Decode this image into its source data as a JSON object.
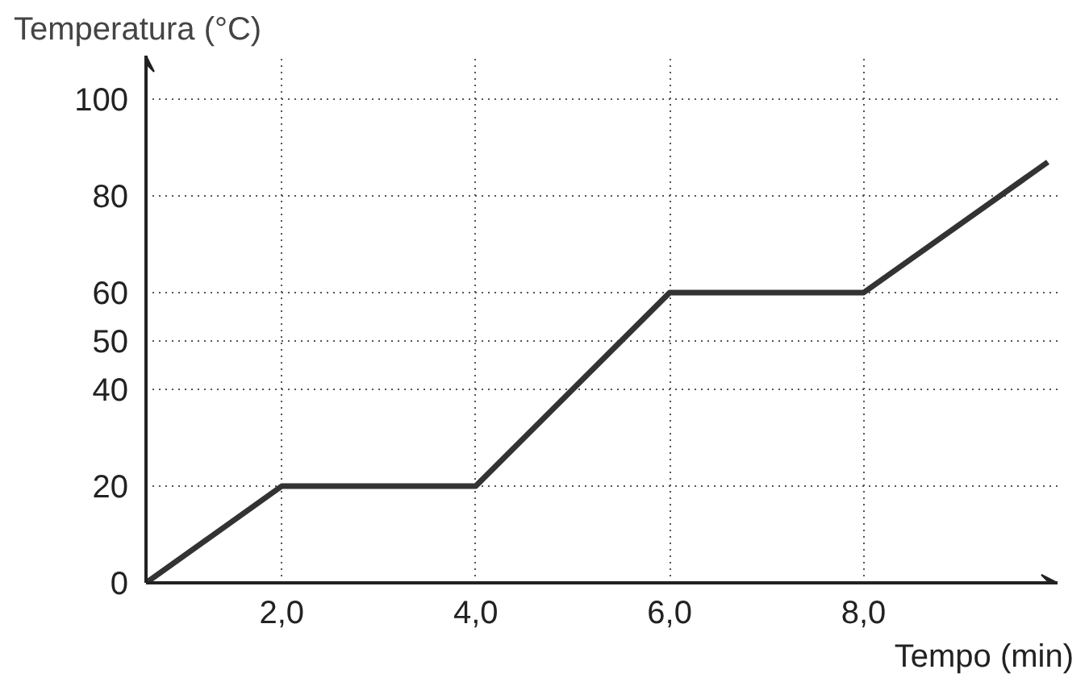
{
  "chart_data": {
    "type": "line",
    "ylabel": "Temperatura (°C)",
    "xlabel": "Tempo (min)",
    "x": [
      0.6,
      2,
      4,
      6,
      8,
      9.9
    ],
    "values": [
      0,
      20,
      20,
      60,
      60,
      87
    ],
    "color": "#333333",
    "xlim": [
      0.6,
      10
    ],
    "ylim": [
      0,
      109
    ],
    "xticks": [
      {
        "value": 2,
        "label": "2,0"
      },
      {
        "value": 4,
        "label": "4,0"
      },
      {
        "value": 6,
        "label": "6,0"
      },
      {
        "value": 8,
        "label": "8,0"
      }
    ],
    "yticks": [
      0,
      20,
      40,
      50,
      60,
      80,
      100
    ],
    "grid": true,
    "line_style": "solid",
    "marker": "none"
  }
}
